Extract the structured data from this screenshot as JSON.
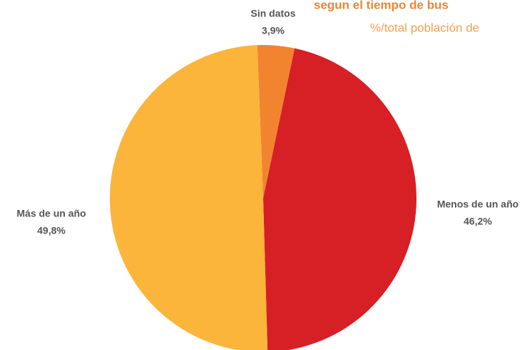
{
  "chart_data": {
    "type": "pie",
    "title": "segun el tiempo de bus",
    "subtitle": "%/total población de",
    "categories": [
      "Sin datos",
      "Menos de un año",
      "Más de un año"
    ],
    "values": [
      3.9,
      46.2,
      49.8
    ],
    "value_labels": [
      "3,9%",
      "46,2%",
      "49,8%"
    ],
    "colors": [
      "#f28430",
      "#d71f26",
      "#fbb53a"
    ]
  }
}
